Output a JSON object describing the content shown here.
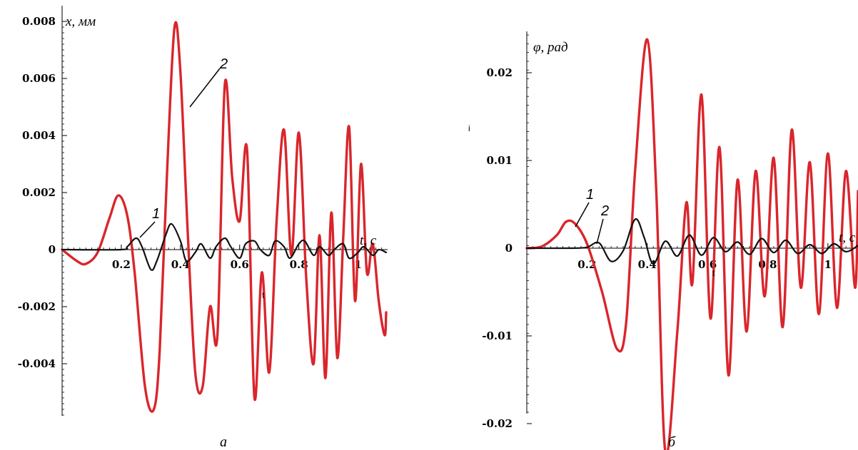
{
  "chart_data": [
    {
      "type": "line",
      "panel_label": "а",
      "ylabel": "x, мм",
      "xlabel": "t, c",
      "xlim": [
        0,
        1.1
      ],
      "ylim": [
        -0.0058,
        0.0081
      ],
      "x_ticks": [
        "0.2",
        "0.4",
        "0.6",
        "0.8",
        "1"
      ],
      "x_tick_values": [
        0.2,
        0.4,
        0.6,
        0.8,
        1.0
      ],
      "y_ticks": [
        "0.008",
        "0.006",
        "0.004",
        "0.002",
        "0",
        "-0.002",
        "-0.004"
      ],
      "y_tick_values": [
        0.008,
        0.006,
        0.004,
        0.002,
        0,
        -0.002,
        -0.004
      ],
      "stray_marks": [
        "t"
      ],
      "series": [
        {
          "name": "2",
          "color": "#d9262c",
          "x": [
            0,
            0.05,
            0.08,
            0.12,
            0.16,
            0.19,
            0.22,
            0.245,
            0.28,
            0.31,
            0.33,
            0.355,
            0.38,
            0.4,
            0.425,
            0.45,
            0.475,
            0.5,
            0.525,
            0.55,
            0.575,
            0.6,
            0.625,
            0.65,
            0.675,
            0.7,
            0.725,
            0.75,
            0.775,
            0.8,
            0.825,
            0.85,
            0.87,
            0.89,
            0.91,
            0.93,
            0.95,
            0.97,
            0.99,
            1.01,
            1.03,
            1.05,
            1.07,
            1.09,
            1.1
          ],
          "values": [
            0,
            -0.0004,
            -0.0005,
            -0.0001,
            0.0011,
            0.0019,
            0.0012,
            -0.0008,
            -0.0048,
            -0.0056,
            -0.0035,
            0.0028,
            0.0078,
            0.0062,
            0.0005,
            -0.0043,
            -0.0048,
            -0.002,
            -0.003,
            0.0058,
            0.0025,
            0.001,
            0.0035,
            -0.0052,
            -0.0008,
            -0.0043,
            0.001,
            0.0042,
            -0.0002,
            0.0041,
            -0.001,
            -0.004,
            0.0005,
            -0.0045,
            0.0013,
            -0.0038,
            0.0004,
            0.0043,
            -0.0018,
            0.003,
            -0.0008,
            0.0002,
            -0.0018,
            -0.003,
            -0.0022
          ]
        },
        {
          "name": "1",
          "color": "#111111",
          "x": [
            0,
            0.2,
            0.22,
            0.25,
            0.27,
            0.3,
            0.32,
            0.35,
            0.37,
            0.4,
            0.42,
            0.45,
            0.47,
            0.5,
            0.52,
            0.55,
            0.57,
            0.6,
            0.62,
            0.65,
            0.67,
            0.7,
            0.72,
            0.75,
            0.77,
            0.8,
            0.82,
            0.85,
            0.87,
            0.9,
            0.92,
            0.95,
            0.97,
            1.0,
            1.02,
            1.05,
            1.07,
            1.1
          ],
          "values": [
            0,
            0,
            0.0001,
            0.0004,
            0.0001,
            -0.0007,
            -0.0004,
            0.0005,
            0.0009,
            0.0003,
            -0.0004,
            -0.0001,
            0.0002,
            -0.0003,
            0.0001,
            0.0004,
            0.0001,
            -0.0003,
            0.0002,
            0.0003,
            0.0,
            -0.0002,
            0.0003,
            0.0001,
            -0.0003,
            0.0002,
            0.0003,
            -0.0002,
            0.0001,
            -0.0002,
            0.0,
            0.0002,
            -0.0003,
            -0.0001,
            0.0001,
            -0.0002,
            0.0,
            -0.0001
          ]
        }
      ]
    },
    {
      "type": "line",
      "panel_label": "б",
      "ylabel": "φ, рад",
      "xlabel": "t, c",
      "xlim": [
        0,
        1.1
      ],
      "ylim": [
        -0.0247,
        0.0247
      ],
      "x_ticks": [
        "0.2",
        "0.4",
        "0.6",
        "0.8",
        "1"
      ],
      "x_tick_values": [
        0.2,
        0.4,
        0.6,
        0.8,
        1.0
      ],
      "y_ticks": [
        "0.02",
        "0.01",
        "0",
        "-0.01",
        "-0.02"
      ],
      "y_tick_values": [
        0.02,
        0.01,
        0,
        -0.01,
        -0.02
      ],
      "stray_marks": [
        "t",
        "i"
      ],
      "series": [
        {
          "name": "1",
          "color": "#d9262c",
          "x": [
            0,
            0.05,
            0.1,
            0.13,
            0.16,
            0.2,
            0.25,
            0.3,
            0.33,
            0.36,
            0.4,
            0.43,
            0.46,
            0.5,
            0.53,
            0.55,
            0.58,
            0.61,
            0.64,
            0.67,
            0.7,
            0.73,
            0.76,
            0.79,
            0.82,
            0.85,
            0.88,
            0.91,
            0.94,
            0.97,
            1.0,
            1.03,
            1.06,
            1.09,
            1.1
          ],
          "values": [
            0,
            0.0002,
            0.0015,
            0.003,
            0.0028,
            0.0005,
            -0.005,
            -0.0115,
            -0.0085,
            0.009,
            0.0238,
            0.0065,
            -0.0232,
            -0.0095,
            0.0052,
            -0.004,
            0.0175,
            -0.008,
            0.0115,
            -0.0145,
            0.0078,
            -0.0095,
            0.0088,
            -0.0055,
            0.0103,
            -0.009,
            0.0135,
            -0.0045,
            0.0098,
            -0.0075,
            0.0108,
            -0.0068,
            0.0088,
            -0.0045,
            0.0065
          ]
        },
        {
          "name": "2",
          "color": "#111111",
          "x": [
            0,
            0.15,
            0.2,
            0.24,
            0.28,
            0.32,
            0.36,
            0.39,
            0.42,
            0.46,
            0.5,
            0.54,
            0.58,
            0.62,
            0.66,
            0.7,
            0.74,
            0.78,
            0.82,
            0.86,
            0.9,
            0.94,
            0.98,
            1.02,
            1.06,
            1.1
          ],
          "values": [
            0,
            0,
            0.0001,
            0.0006,
            -0.0015,
            -0.0003,
            0.0033,
            0.0012,
            -0.0018,
            0.0008,
            -0.0009,
            0.0015,
            -0.0008,
            0.0012,
            -0.0004,
            0.0007,
            -0.0007,
            0.0011,
            -0.0005,
            0.0009,
            -0.0006,
            0.0004,
            -0.0006,
            0.0005,
            -0.0004,
            0.0003
          ]
        }
      ]
    }
  ]
}
